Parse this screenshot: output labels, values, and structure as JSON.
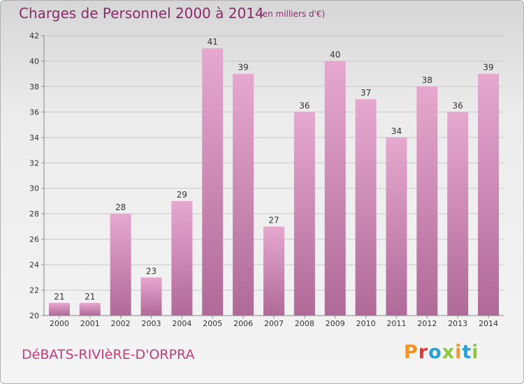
{
  "header": {
    "title": "Charges de Personnel 2000 à 2014",
    "subtitle": "(en milliers d'€)"
  },
  "footer": {
    "commune": "DéBATS-RIVIèRE-D'ORPRA",
    "logo": "Proxiti",
    "logo_colors": [
      "#f7931e",
      "#e8352f",
      "#2a9fd8",
      "#8dc63f",
      "#f7931e",
      "#2a9fd8",
      "#8dc63f"
    ]
  },
  "colors": {
    "bar_top": "#e6a8cf",
    "bar_bottom": "#b06a98",
    "grid": "#c8c8c8",
    "axis": "#888888"
  },
  "chart_data": {
    "type": "bar",
    "categories": [
      "2000",
      "2001",
      "2002",
      "2003",
      "2004",
      "2005",
      "2006",
      "2007",
      "2008",
      "2009",
      "2010",
      "2011",
      "2012",
      "2013",
      "2014"
    ],
    "values": [
      21,
      21,
      28,
      23,
      29,
      41,
      39,
      27,
      36,
      40,
      37,
      34,
      38,
      36,
      39
    ],
    "title": "Charges de Personnel 2000 à 2014",
    "subtitle": "(en milliers d'€)",
    "xlabel": "",
    "ylabel": "",
    "ylim": [
      20,
      42
    ],
    "yticks": [
      20,
      22,
      24,
      26,
      28,
      30,
      32,
      34,
      36,
      38,
      40,
      42
    ],
    "grid": true,
    "data_labels": true
  }
}
